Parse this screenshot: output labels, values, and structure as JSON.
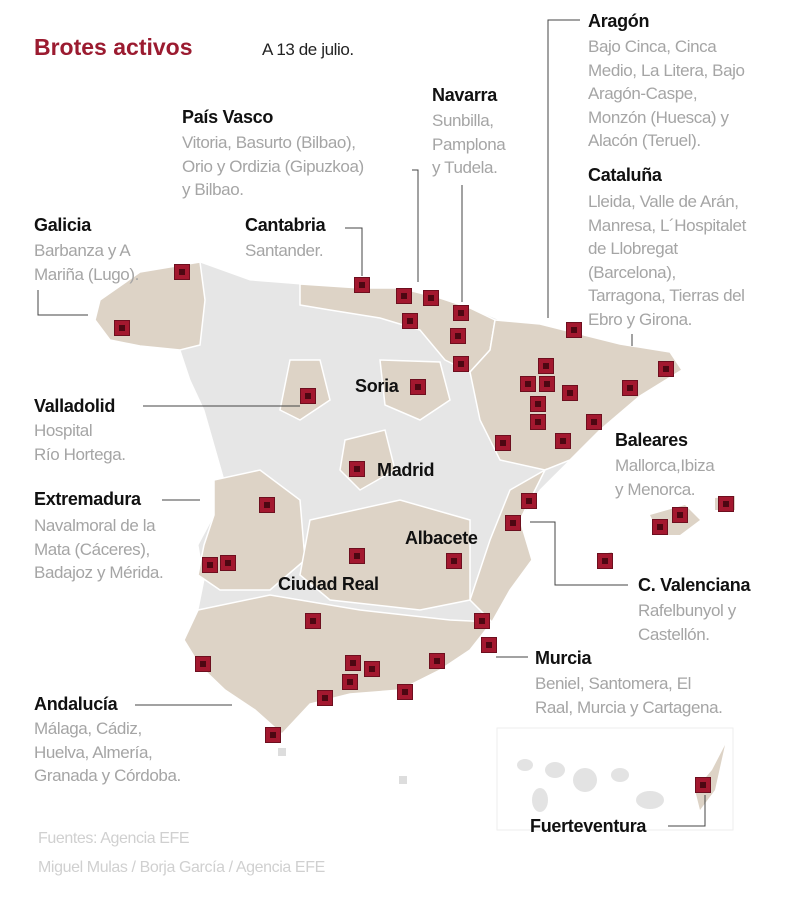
{
  "header": {
    "title": "Brotes activos",
    "date": "A 13 de julio."
  },
  "regions": {
    "pais_vasco": {
      "name": "País Vasco",
      "lines": [
        "Vitoria, Basurto (Bilbao),",
        "Orio y Ordizia (Gipuzkoa)",
        "y Bilbao."
      ]
    },
    "navarra": {
      "name": "Navarra",
      "lines": [
        "Sunbilla,",
        "Pamplona",
        "y Tudela."
      ]
    },
    "aragon": {
      "name": "Aragón",
      "lines": [
        "Bajo Cinca, Cinca",
        "Medio, La Litera, Bajo",
        "Aragón-Caspe,",
        "Monzón (Huesca) y",
        "Alacón (Teruel)."
      ]
    },
    "cataluna": {
      "name": "Cataluña",
      "lines": [
        "Lleida, Valle de Arán,",
        "Manresa, L´Hospitalet",
        "de Llobregat",
        "(Barcelona),",
        "Tarragona, Tierras del",
        "Ebro y Girona."
      ]
    },
    "galicia": {
      "name": "Galicia",
      "lines": [
        "Barbanza y A",
        "Mariña (Lugo)."
      ]
    },
    "cantabria": {
      "name": "Cantabria",
      "lines": [
        "Santander."
      ]
    },
    "soria": {
      "name": "Soria"
    },
    "valladolid": {
      "name": "Valladolid",
      "lines": [
        "Hospital",
        "Río Hortega."
      ]
    },
    "madrid": {
      "name": "Madrid"
    },
    "baleares": {
      "name": "Baleares",
      "lines": [
        "Mallorca,Ibiza",
        "y Menorca."
      ]
    },
    "extremadura": {
      "name": "Extremadura",
      "lines": [
        "Navalmoral de la",
        "Mata (Cáceres),",
        "Badajoz y Mérida."
      ]
    },
    "albacete": {
      "name": "Albacete"
    },
    "ciudad_real": {
      "name": "Ciudad Real"
    },
    "valenciana": {
      "name": "C. Valenciana",
      "lines": [
        "Rafelbunyol y",
        "Castellón."
      ]
    },
    "murcia": {
      "name": "Murcia",
      "lines": [
        "Beniel, Santomera, El",
        "Raal, Murcia y Cartagena."
      ]
    },
    "andalucia": {
      "name": "Andalucía",
      "lines": [
        "Málaga, Cádiz,",
        "Huelva, Almería,",
        "Granada y Córdoba."
      ]
    },
    "fuerteventura": {
      "name": "Fuerteventura"
    }
  },
  "footer": {
    "sources": "Fuentes: Agencia EFE",
    "credits": "Miguel Mulas / Borja García / Agencia EFE"
  },
  "colors": {
    "accent": "#9b1b30",
    "land_affected": "#ddd3c6",
    "land_other": "#e6e6e6"
  }
}
